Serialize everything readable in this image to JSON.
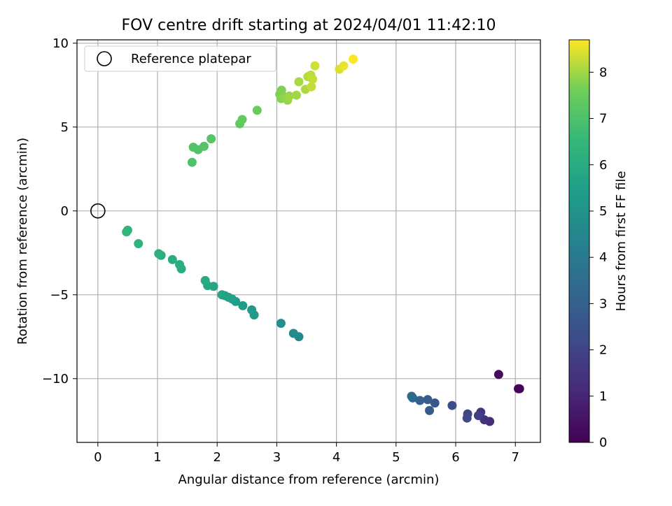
{
  "chart_data": {
    "type": "scatter",
    "title": "FOV centre drift starting at 2024/04/01 11:42:10",
    "xlabel": "Angular distance from reference (arcmin)",
    "ylabel": "Rotation from reference (arcmin)",
    "xlim": [
      -0.35,
      7.42
    ],
    "ylim": [
      -13.8,
      10.2
    ],
    "x_ticks": [
      0,
      1,
      2,
      3,
      4,
      5,
      6,
      7
    ],
    "y_ticks": [
      -10,
      -5,
      0,
      5,
      10
    ],
    "x_tick_labels": [
      "0",
      "1",
      "2",
      "3",
      "4",
      "5",
      "6",
      "7"
    ],
    "y_tick_labels": [
      "−10",
      "−5",
      "0",
      "5",
      "10"
    ],
    "grid": true,
    "legend": {
      "position": "top-left",
      "entries": [
        "Reference platepar"
      ]
    },
    "colorbar": {
      "label": "Hours from first FF file",
      "colormap": "viridis",
      "range": [
        0,
        8.7
      ],
      "ticks": [
        0,
        1,
        2,
        3,
        4,
        5,
        6,
        7,
        8
      ],
      "tick_labels": [
        "0",
        "1",
        "2",
        "3",
        "4",
        "5",
        "6",
        "7",
        "8"
      ]
    },
    "reference_point": {
      "x": 0,
      "y": 0
    },
    "series": [
      {
        "name": "Reference platepar",
        "points": [
          {
            "x": 0,
            "y": 0
          }
        ]
      },
      {
        "points": [
          {
            "x": 7.07,
            "y": -10.6,
            "c": 0.05
          },
          {
            "x": 7.05,
            "y": -10.6,
            "c": 0.15
          },
          {
            "x": 6.72,
            "y": -9.75,
            "c": 0.3
          },
          {
            "x": 6.57,
            "y": -12.55,
            "c": 1.2
          },
          {
            "x": 6.48,
            "y": -12.45,
            "c": 1.4
          },
          {
            "x": 6.42,
            "y": -12.0,
            "c": 1.6
          },
          {
            "x": 6.38,
            "y": -12.2,
            "c": 1.8
          },
          {
            "x": 6.2,
            "y": -12.1,
            "c": 2.0
          },
          {
            "x": 6.19,
            "y": -12.35,
            "c": 2.1
          },
          {
            "x": 5.94,
            "y": -11.6,
            "c": 2.3
          },
          {
            "x": 5.65,
            "y": -11.45,
            "c": 2.6
          },
          {
            "x": 5.56,
            "y": -11.9,
            "c": 2.8
          },
          {
            "x": 5.53,
            "y": -11.25,
            "c": 2.9
          },
          {
            "x": 5.4,
            "y": -11.3,
            "c": 3.0
          },
          {
            "x": 5.28,
            "y": -11.15,
            "c": 3.2
          },
          {
            "x": 5.26,
            "y": -11.05,
            "c": 3.3
          },
          {
            "x": 3.37,
            "y": -7.5,
            "c": 4.6
          },
          {
            "x": 3.28,
            "y": -7.3,
            "c": 4.7
          },
          {
            "x": 3.07,
            "y": -6.7,
            "c": 4.9
          },
          {
            "x": 2.62,
            "y": -6.2,
            "c": 5.2
          },
          {
            "x": 2.58,
            "y": -5.9,
            "c": 5.3
          },
          {
            "x": 2.43,
            "y": -5.65,
            "c": 5.4
          },
          {
            "x": 2.31,
            "y": -5.4,
            "c": 5.5
          },
          {
            "x": 2.25,
            "y": -5.25,
            "c": 5.55
          },
          {
            "x": 2.19,
            "y": -5.15,
            "c": 5.6
          },
          {
            "x": 2.13,
            "y": -5.05,
            "c": 5.65
          },
          {
            "x": 2.08,
            "y": -5.0,
            "c": 5.7
          },
          {
            "x": 1.94,
            "y": -4.5,
            "c": 5.8
          },
          {
            "x": 1.84,
            "y": -4.45,
            "c": 5.85
          },
          {
            "x": 1.8,
            "y": -4.15,
            "c": 5.9
          },
          {
            "x": 1.4,
            "y": -3.45,
            "c": 6.0
          },
          {
            "x": 1.37,
            "y": -3.2,
            "c": 6.05
          },
          {
            "x": 1.25,
            "y": -2.9,
            "c": 6.1
          },
          {
            "x": 1.06,
            "y": -2.65,
            "c": 6.15
          },
          {
            "x": 1.02,
            "y": -2.55,
            "c": 6.2
          },
          {
            "x": 0.68,
            "y": -1.95,
            "c": 6.3
          },
          {
            "x": 0.5,
            "y": -1.15,
            "c": 6.4
          },
          {
            "x": 0.48,
            "y": -1.25,
            "c": 6.45
          },
          {
            "x": 1.58,
            "y": 2.9,
            "c": 7.0
          },
          {
            "x": 1.6,
            "y": 3.8,
            "c": 7.05
          },
          {
            "x": 1.68,
            "y": 3.65,
            "c": 7.1
          },
          {
            "x": 1.78,
            "y": 3.85,
            "c": 7.15
          },
          {
            "x": 1.9,
            "y": 4.3,
            "c": 7.2
          },
          {
            "x": 2.38,
            "y": 5.2,
            "c": 7.35
          },
          {
            "x": 2.42,
            "y": 5.45,
            "c": 7.4
          },
          {
            "x": 2.67,
            "y": 6.0,
            "c": 7.5
          },
          {
            "x": 3.05,
            "y": 6.95,
            "c": 7.7
          },
          {
            "x": 3.08,
            "y": 7.2,
            "c": 7.75
          },
          {
            "x": 3.07,
            "y": 6.7,
            "c": 7.8
          },
          {
            "x": 3.13,
            "y": 6.8,
            "c": 7.85
          },
          {
            "x": 3.18,
            "y": 6.6,
            "c": 7.9
          },
          {
            "x": 3.21,
            "y": 6.85,
            "c": 7.95
          },
          {
            "x": 3.33,
            "y": 6.9,
            "c": 8.0
          },
          {
            "x": 3.37,
            "y": 7.7,
            "c": 8.05
          },
          {
            "x": 3.48,
            "y": 7.25,
            "c": 8.1
          },
          {
            "x": 3.52,
            "y": 8.0,
            "c": 8.15
          },
          {
            "x": 3.57,
            "y": 8.1,
            "c": 8.2
          },
          {
            "x": 3.58,
            "y": 7.4,
            "c": 8.25
          },
          {
            "x": 3.6,
            "y": 7.85,
            "c": 8.3
          },
          {
            "x": 3.64,
            "y": 8.65,
            "c": 8.35
          },
          {
            "x": 4.05,
            "y": 8.45,
            "c": 8.45
          },
          {
            "x": 4.12,
            "y": 8.65,
            "c": 8.55
          },
          {
            "x": 4.28,
            "y": 9.05,
            "c": 8.7
          }
        ]
      }
    ]
  }
}
